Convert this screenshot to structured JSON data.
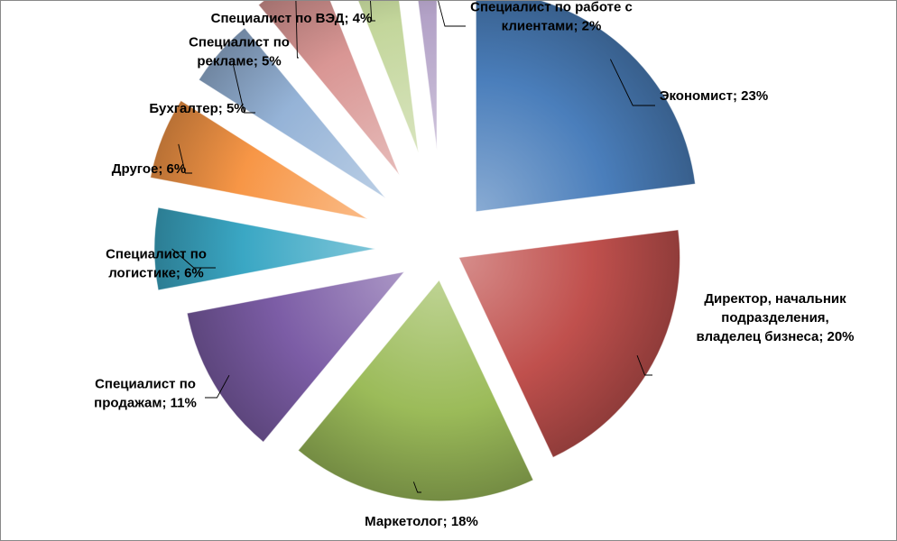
{
  "chart_data": {
    "type": "pie",
    "title": "",
    "legend": "none",
    "data_labels": "category; percent",
    "slices": [
      {
        "category": "Экономист",
        "value": 23,
        "label_lines": [
          "Экономист; 23%"
        ],
        "color": "#4a7ebb"
      },
      {
        "category": "Директор, начальник подразделения, владелец бизнеса",
        "value": 20,
        "label_lines": [
          "Директор, начальник",
          "подразделения,",
          "владелец бизнеса; 20%"
        ],
        "color": "#c0504d"
      },
      {
        "category": "Маркетолог",
        "value": 18,
        "label_lines": [
          "Маркетолог; 18%"
        ],
        "color": "#9bbb59"
      },
      {
        "category": "Специалист по продажам",
        "value": 11,
        "label_lines": [
          "Специалист по",
          "продажам; 11%"
        ],
        "color": "#7c5da6"
      },
      {
        "category": "Специалист по логистике",
        "value": 6,
        "label_lines": [
          "Специалист по",
          "логистике; 6%"
        ],
        "color": "#3aa7c4"
      },
      {
        "category": "Другое",
        "value": 6,
        "label_lines": [
          "Другое; 6%"
        ],
        "color": "#f79646"
      },
      {
        "category": "Бухгалтер",
        "value": 5,
        "label_lines": [
          "Бухгалтер; 5%"
        ],
        "color": "#95b3d7"
      },
      {
        "category": "Специалист по рекламе",
        "value": 5,
        "label_lines": [
          "Специалист по",
          "рекламе; 5%"
        ],
        "color": "#d99694"
      },
      {
        "category": "Специалист по ВЭД",
        "value": 4,
        "label_lines": [
          "Специалист по ВЭД; 4%"
        ],
        "color": "#c3d69b"
      },
      {
        "category": "Специалист по работе с клиентами",
        "value": 2,
        "label_lines": [
          "Специалист по работе с",
          "клиентами; 2%"
        ],
        "color": "#b3a2c7"
      }
    ]
  }
}
